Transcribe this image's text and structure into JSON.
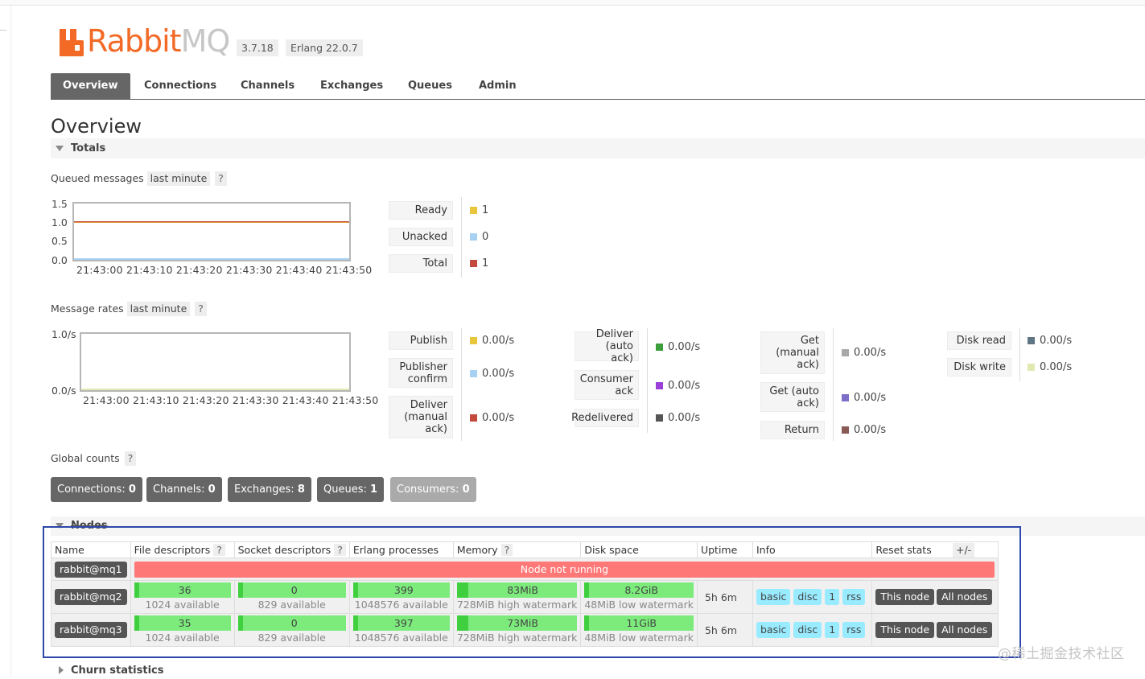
{
  "header": {
    "brand_main": "Rabbit",
    "brand_suffix": "MQ",
    "version": "3.7.18",
    "erlang": "Erlang 22.0.7"
  },
  "tabs": [
    {
      "label": "Overview",
      "active": true
    },
    {
      "label": "Connections"
    },
    {
      "label": "Channels"
    },
    {
      "label": "Exchanges"
    },
    {
      "label": "Queues"
    },
    {
      "label": "Admin"
    }
  ],
  "page_title": "Overview",
  "totals_title": "Totals",
  "queued": {
    "label": "Queued messages",
    "period": "last minute",
    "help": "?",
    "yticks": [
      "1.5",
      "1.0",
      "0.5",
      "0.0"
    ],
    "xticks": [
      "21:43:00",
      "21:43:10",
      "21:43:20",
      "21:43:30",
      "21:43:40",
      "21:43:50"
    ],
    "legend": [
      {
        "label": "Ready",
        "value": "1",
        "color": "#e8c53a"
      },
      {
        "label": "Unacked",
        "value": "0",
        "color": "#a7d1f2"
      },
      {
        "label": "Total",
        "value": "1",
        "color": "#c54a3e"
      }
    ]
  },
  "rates": {
    "label": "Message rates",
    "period": "last minute",
    "help": "?",
    "yticks": [
      "1.0/s",
      "0.0/s"
    ],
    "xticks": [
      "21:43:00",
      "21:43:10",
      "21:43:20",
      "21:43:30",
      "21:43:40",
      "21:43:50"
    ],
    "col1": [
      {
        "label": "Publish",
        "value": "0.00/s",
        "color": "#e8c53a"
      },
      {
        "label": "Publisher confirm",
        "value": "0.00/s",
        "color": "#a7d1f2"
      },
      {
        "label": "Deliver (manual ack)",
        "value": "0.00/s",
        "color": "#c54a3e"
      }
    ],
    "col2": [
      {
        "label": "Deliver (auto ack)",
        "value": "0.00/s",
        "color": "#3d9e3d"
      },
      {
        "label": "Consumer ack",
        "value": "0.00/s",
        "color": "#9b3fd9"
      },
      {
        "label": "Redelivered",
        "value": "0.00/s",
        "color": "#555555"
      }
    ],
    "col3": [
      {
        "label": "Get (manual ack)",
        "value": "0.00/s",
        "color": "#a8a8a8"
      },
      {
        "label": "Get (auto ack)",
        "value": "0.00/s",
        "color": "#7d6ec7"
      },
      {
        "label": "Return",
        "value": "0.00/s",
        "color": "#8a5a55"
      }
    ],
    "col4": [
      {
        "label": "Disk read",
        "value": "0.00/s",
        "color": "#5f7584"
      },
      {
        "label": "Disk write",
        "value": "0.00/s",
        "color": "#e3e8b0"
      }
    ]
  },
  "global_counts": {
    "label": "Global counts",
    "help": "?",
    "items": [
      {
        "label": "Connections:",
        "value": "0"
      },
      {
        "label": "Channels:",
        "value": "0"
      },
      {
        "label": "Exchanges:",
        "value": "8"
      },
      {
        "label": "Queues:",
        "value": "1"
      },
      {
        "label": "Consumers:",
        "value": "0"
      }
    ]
  },
  "nodes_title": "Nodes",
  "nodes": {
    "columns": [
      "Name",
      "File descriptors",
      "Socket descriptors",
      "Erlang processes",
      "Memory",
      "Disk space",
      "Uptime",
      "Info",
      "Reset stats"
    ],
    "help": "?",
    "plusminus": "+/-",
    "not_running": "Node not running",
    "rows": [
      {
        "name": "rabbit@mq1"
      },
      {
        "name": "rabbit@mq2",
        "fd": "36",
        "fd_sub": "1024 available",
        "sd": "0",
        "sd_sub": "829 available",
        "ep": "399",
        "ep_sub": "1048576 available",
        "mem": "83MiB",
        "mem_sub": "728MiB high watermark",
        "disk": "8.2GiB",
        "disk_sub": "48MiB low watermark",
        "uptime": "5h 6m",
        "info": [
          "basic",
          "disc",
          "1",
          "rss"
        ],
        "reset": [
          "This node",
          "All nodes"
        ]
      },
      {
        "name": "rabbit@mq3",
        "fd": "35",
        "fd_sub": "1024 available",
        "sd": "0",
        "sd_sub": "829 available",
        "ep": "397",
        "ep_sub": "1048576 available",
        "mem": "73MiB",
        "mem_sub": "728MiB high watermark",
        "disk": "11GiB",
        "disk_sub": "48MiB low watermark",
        "uptime": "5h 6m",
        "info": [
          "basic",
          "disc",
          "1",
          "rss"
        ],
        "reset": [
          "This node",
          "All nodes"
        ]
      }
    ]
  },
  "churn_title": "Churn statistics",
  "watermark": "@稀土掘金技术社区"
}
